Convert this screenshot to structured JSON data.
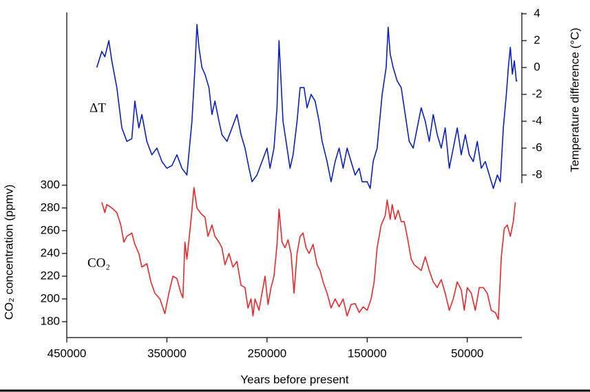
{
  "chart_data": {
    "type": "line",
    "x_label": "Years before present",
    "y_label": "CO₂ concentration (ppmv)",
    "y2_label": "Temperature difference (°C)",
    "annotations": [
      "ΔT",
      "CO₂"
    ],
    "xlim": [
      450000,
      -4500
    ],
    "xticks": [
      450000,
      350000,
      250000,
      150000,
      50000
    ],
    "ylim": [
      166,
      452
    ],
    "yticks": [
      180,
      200,
      220,
      240,
      260,
      280,
      300
    ],
    "y2lim": [
      -20.1,
      4.1
    ],
    "y2ticks": [
      -8,
      -6,
      -4,
      -2,
      0,
      2,
      4
    ],
    "series": [
      {
        "name": "ΔT",
        "color": "#0a1fbf",
        "axis": "y2",
        "x": [
          420000,
          415000,
          412000,
          408000,
          405000,
          400000,
          395000,
          390000,
          385000,
          382000,
          378000,
          375000,
          370000,
          365000,
          360000,
          355000,
          350000,
          345000,
          340000,
          335000,
          330000,
          325000,
          322000,
          320000,
          318000,
          315000,
          312000,
          308000,
          305000,
          302000,
          298000,
          295000,
          290000,
          285000,
          280000,
          276000,
          272000,
          268000,
          265000,
          260000,
          255000,
          250000,
          247000,
          243000,
          240000,
          238000,
          236000,
          234000,
          230000,
          227000,
          224000,
          220000,
          217000,
          213000,
          210000,
          206000,
          202000,
          198000,
          195000,
          190000,
          186000,
          182000,
          178000,
          174000,
          170000,
          166000,
          162000,
          158000,
          155000,
          150000,
          147000,
          144000,
          140000,
          135000,
          131000,
          129000,
          127000,
          124000,
          120000,
          116000,
          112000,
          108000,
          104000,
          100000,
          96000,
          92000,
          88000,
          84000,
          80000,
          76000,
          72000,
          68000,
          64000,
          60000,
          56000,
          52000,
          48000,
          44000,
          40000,
          36000,
          32000,
          28000,
          24000,
          20000,
          17000,
          14000,
          11000,
          9000,
          7000,
          5000,
          3000,
          1000,
          0
        ],
        "values": [
          0.0,
          1.2,
          0.8,
          2.0,
          0.5,
          -1.5,
          -4.5,
          -5.5,
          -5.3,
          -2.5,
          -4.5,
          -3.5,
          -5.5,
          -6.5,
          -6.0,
          -7.0,
          -7.5,
          -7.3,
          -6.5,
          -7.5,
          -8.0,
          -4.0,
          0.0,
          3.2,
          1.5,
          0.0,
          -0.5,
          -1.5,
          -3.5,
          -2.5,
          -4.0,
          -5.0,
          -5.5,
          -4.5,
          -3.5,
          -5.0,
          -6.0,
          -7.5,
          -8.5,
          -8.0,
          -7.0,
          -6.0,
          -7.5,
          -6.0,
          -3.0,
          2.0,
          -1.0,
          -4.0,
          -6.0,
          -7.5,
          -6.5,
          -4.0,
          -1.5,
          -1.5,
          -3.0,
          -2.0,
          -2.5,
          -4.0,
          -5.5,
          -7.0,
          -8.5,
          -7.0,
          -6.0,
          -7.5,
          -6.0,
          -7.0,
          -8.0,
          -7.5,
          -8.5,
          -8.5,
          -9.0,
          -7.0,
          -6.0,
          -2.0,
          0.0,
          3.0,
          1.0,
          0.0,
          -1.0,
          -1.5,
          -3.5,
          -5.5,
          -6.0,
          -4.5,
          -3.0,
          -4.0,
          -5.5,
          -3.5,
          -5.0,
          -6.0,
          -4.5,
          -7.5,
          -6.0,
          -4.5,
          -6.5,
          -5.0,
          -6.5,
          -7.0,
          -5.5,
          -7.5,
          -7.0,
          -8.0,
          -9.0,
          -8.0,
          -8.5,
          -4.5,
          -2.0,
          0.0,
          1.5,
          -0.5,
          0.5,
          -1.0,
          -1.0
        ]
      },
      {
        "name": "CO₂",
        "color": "#e8262b",
        "axis": "y",
        "x": [
          415000,
          412000,
          410000,
          405000,
          400000,
          396000,
          393000,
          390000,
          385000,
          382000,
          378000,
          375000,
          370000,
          366000,
          362000,
          357000,
          352000,
          348000,
          344000,
          340000,
          336000,
          334000,
          332000,
          330000,
          327000,
          325000,
          323000,
          320000,
          316000,
          312000,
          309000,
          305000,
          302000,
          298000,
          295000,
          292000,
          288000,
          284000,
          280000,
          276000,
          272000,
          269000,
          266000,
          264000,
          262000,
          258000,
          255000,
          252000,
          249000,
          246000,
          243000,
          240000,
          238000,
          235000,
          232000,
          229000,
          226000,
          223000,
          220000,
          217000,
          214000,
          211000,
          208000,
          204000,
          200000,
          197000,
          194000,
          190000,
          186000,
          182000,
          178000,
          174000,
          170000,
          166000,
          162000,
          158000,
          154000,
          150000,
          146000,
          143000,
          140000,
          136000,
          132000,
          130000,
          127000,
          125000,
          122000,
          119000,
          116000,
          113000,
          110000,
          106000,
          103000,
          100000,
          96000,
          92000,
          88000,
          84000,
          80000,
          76000,
          72000,
          68000,
          64000,
          60000,
          56000,
          53000,
          50000,
          46000,
          42000,
          38000,
          34000,
          30000,
          26000,
          22000,
          19000,
          16000,
          13000,
          10000,
          7000,
          4000,
          2000
        ],
        "values": [
          285,
          276,
          283,
          280,
          276,
          265,
          250,
          255,
          258,
          248,
          240,
          228,
          231,
          215,
          205,
          200,
          187,
          205,
          220,
          218,
          205,
          201,
          250,
          235,
          260,
          278,
          298,
          280,
          275,
          272,
          255,
          265,
          255,
          250,
          245,
          230,
          240,
          228,
          233,
          212,
          210,
          192,
          200,
          185,
          200,
          190,
          205,
          220,
          195,
          210,
          220,
          248,
          279,
          250,
          245,
          252,
          240,
          205,
          240,
          255,
          258,
          245,
          240,
          248,
          230,
          225,
          215,
          205,
          192,
          200,
          193,
          200,
          185,
          195,
          196,
          188,
          193,
          190,
          200,
          215,
          245,
          265,
          273,
          287,
          270,
          283,
          270,
          278,
          268,
          268,
          255,
          235,
          230,
          228,
          225,
          237,
          225,
          215,
          210,
          217,
          205,
          190,
          200,
          215,
          208,
          190,
          210,
          205,
          190,
          210,
          210,
          205,
          190,
          188,
          182,
          237,
          262,
          265,
          255,
          268,
          285
        ]
      }
    ]
  }
}
